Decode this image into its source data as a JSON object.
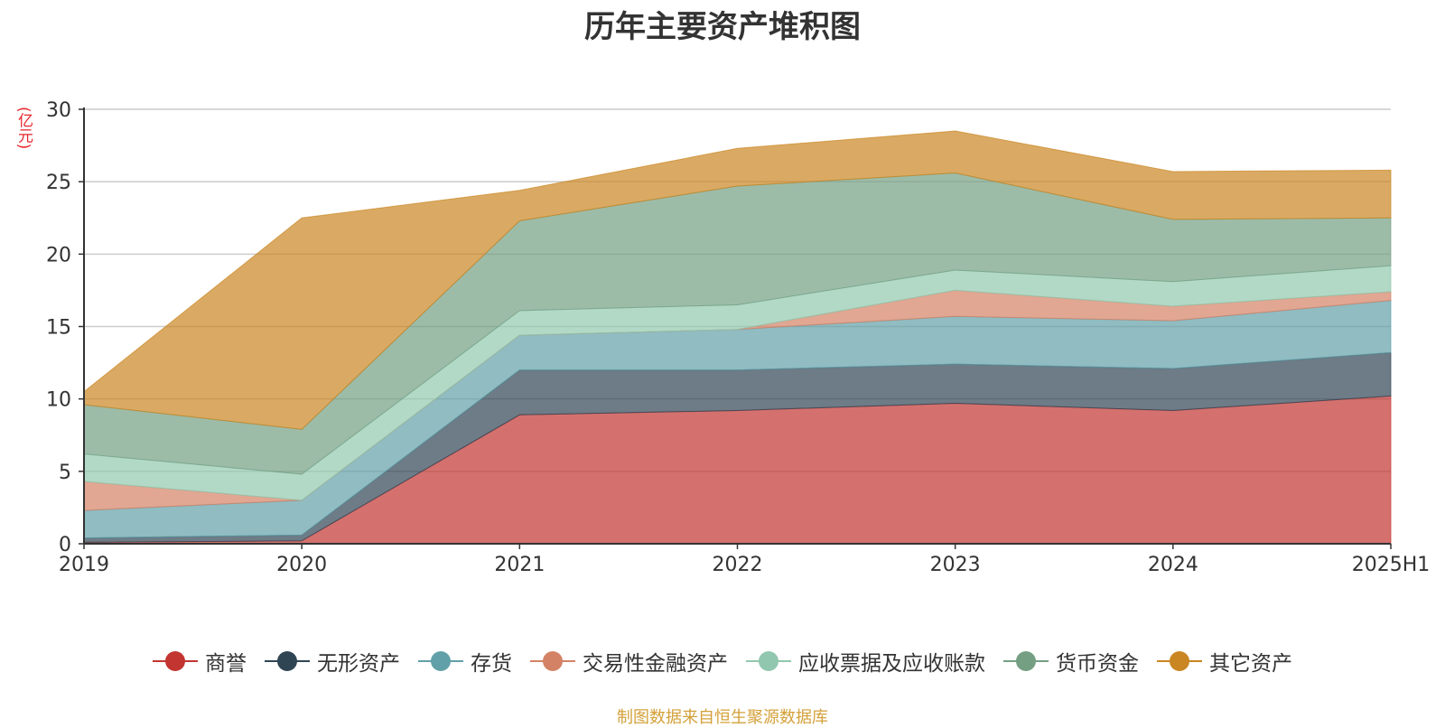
{
  "chart_data": {
    "type": "area",
    "stacked": true,
    "title": "历年主要资产堆积图",
    "ylabel": "(亿元)",
    "xlabel": "",
    "categories": [
      "2019",
      "2020",
      "2021",
      "2022",
      "2023",
      "2024",
      "2025H1"
    ],
    "ylim": [
      0,
      30
    ],
    "yticks": [
      0,
      5,
      10,
      15,
      20,
      25,
      30
    ],
    "grid": true,
    "legend_position": "bottom",
    "series": [
      {
        "name": "商誉",
        "color": "#c23531",
        "values": [
          0.1,
          0.2,
          8.9,
          9.2,
          9.7,
          9.2,
          10.2
        ]
      },
      {
        "name": "无形资产",
        "color": "#2f4554",
        "values": [
          0.3,
          0.4,
          3.1,
          2.8,
          2.7,
          2.9,
          3.0
        ]
      },
      {
        "name": "存货",
        "color": "#61a0a8",
        "values": [
          1.9,
          2.4,
          2.4,
          2.8,
          3.3,
          3.3,
          3.6
        ]
      },
      {
        "name": "交易性金融资产",
        "color": "#d48265",
        "values": [
          2.0,
          0.0,
          0.0,
          0.0,
          1.8,
          1.0,
          0.6
        ]
      },
      {
        "name": "应收票据及应收账款",
        "color": "#91c7ae",
        "values": [
          1.9,
          1.8,
          1.7,
          1.7,
          1.4,
          1.7,
          1.8
        ]
      },
      {
        "name": "货币资金",
        "color": "#749f83",
        "values": [
          3.4,
          3.1,
          6.2,
          8.2,
          6.7,
          4.3,
          3.3
        ]
      },
      {
        "name": "其它资产",
        "color": "#ca8622",
        "values": [
          0.9,
          14.6,
          2.1,
          2.6,
          2.9,
          3.3,
          3.3
        ]
      }
    ]
  },
  "source_note": "制图数据来自恒生聚源数据库"
}
